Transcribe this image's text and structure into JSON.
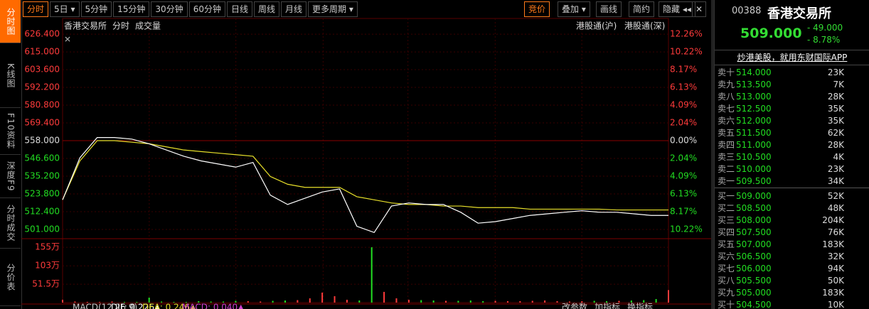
{
  "toolbar": {
    "left": [
      "分时",
      "5日 ▾",
      "5分钟",
      "15分钟",
      "30分钟",
      "60分钟",
      "日线",
      "周线",
      "月线",
      "更多周期 ▾"
    ],
    "right": [
      "竞价",
      "叠加 ▾",
      "画线",
      "简约",
      "隐藏 ◂◂"
    ]
  },
  "side_tabs": [
    "分时图",
    "K线图",
    "F10资料",
    "深度F9",
    "分时成交",
    "分价表"
  ],
  "chart": {
    "name": "香港交易所",
    "mode": "分时",
    "volume_label": "成交量",
    "links": [
      "港股通(沪)",
      "港股通(深)"
    ],
    "prev_close": 558.0,
    "ylim": [
      495.5,
      631.0
    ],
    "yticks": [
      {
        "value": 626.4,
        "label": "626.400"
      },
      {
        "value": 615.0,
        "label": "615.000"
      },
      {
        "value": 603.6,
        "label": "603.600"
      },
      {
        "value": 592.2,
        "label": "592.200"
      },
      {
        "value": 580.8,
        "label": "580.800"
      },
      {
        "value": 569.4,
        "label": "569.400"
      },
      {
        "value": 558.0,
        "label": "558.000"
      },
      {
        "value": 546.6,
        "label": "546.600"
      },
      {
        "value": 535.2,
        "label": "535.200"
      },
      {
        "value": 523.8,
        "label": "523.800"
      },
      {
        "value": 512.4,
        "label": "512.400"
      },
      {
        "value": 501.0,
        "label": "501.000"
      }
    ],
    "pct_labels": [
      "12.26%",
      "10.22%",
      "8.17%",
      "6.13%",
      "4.09%",
      "2.04%",
      "0.00%",
      "2.04%",
      "4.09%",
      "6.13%",
      "8.17%",
      "10.22%"
    ],
    "price": [
      520,
      547,
      560,
      560,
      559,
      556,
      552,
      548,
      545,
      543,
      541,
      544,
      523,
      517,
      521,
      525,
      527,
      503,
      499,
      516,
      518,
      517,
      517,
      512,
      505,
      506,
      508,
      510,
      511,
      512,
      513,
      512,
      512,
      511,
      510,
      510
    ],
    "average": [
      520,
      545,
      558,
      558,
      557,
      556,
      554,
      552,
      551,
      550,
      549,
      548,
      535,
      530,
      528,
      528,
      528,
      522,
      520,
      518,
      517,
      517,
      516,
      516,
      515,
      515,
      515,
      514,
      514,
      514,
      514,
      514,
      513.5,
      513.5,
      513.5,
      513.5
    ],
    "vlim": [
      0,
      179
    ],
    "vticks": [
      {
        "value": 155,
        "label": "155万"
      },
      {
        "value": 103,
        "label": "103万"
      },
      {
        "value": 51.5,
        "label": "51.5万"
      }
    ],
    "volume": [
      8,
      3,
      2,
      2,
      3,
      2,
      2,
      14,
      3,
      2,
      2,
      4,
      3,
      3,
      5,
      4,
      3,
      5,
      6,
      7,
      12,
      28,
      18,
      8,
      6,
      155,
      30,
      12,
      8,
      7,
      6,
      5,
      5,
      6,
      4,
      5,
      4,
      4,
      5,
      6,
      4,
      3,
      4,
      5,
      4,
      5,
      6,
      7,
      10,
      35
    ],
    "macd": [
      "MACD(12,26,9)",
      "DIF: 0.226▲",
      "DEA: 0.246▲",
      "MACD: 0.040▲"
    ],
    "macd_actions": [
      "改参数",
      "加指标",
      "换指标"
    ]
  },
  "quote": {
    "code": "00388",
    "name": "香港交易所",
    "price": "509.000",
    "change": "- 49.000",
    "pct": "- 8.78%",
    "ad": "炒港美股，就用东财国际APP",
    "sell": [
      [
        "卖十",
        "514.000",
        "23K"
      ],
      [
        "卖九",
        "513.500",
        "7K"
      ],
      [
        "卖八",
        "513.000",
        "28K"
      ],
      [
        "卖七",
        "512.500",
        "35K"
      ],
      [
        "卖六",
        "512.000",
        "35K"
      ],
      [
        "卖五",
        "511.500",
        "62K"
      ],
      [
        "卖四",
        "511.000",
        "28K"
      ],
      [
        "卖三",
        "510.500",
        "4K"
      ],
      [
        "卖二",
        "510.000",
        "23K"
      ],
      [
        "卖一",
        "509.500",
        "34K"
      ]
    ],
    "buy": [
      [
        "买一",
        "509.000",
        "52K"
      ],
      [
        "买二",
        "508.500",
        "48K"
      ],
      [
        "买三",
        "508.000",
        "204K"
      ],
      [
        "买四",
        "507.500",
        "76K"
      ],
      [
        "买五",
        "507.000",
        "183K"
      ],
      [
        "买六",
        "506.500",
        "32K"
      ],
      [
        "买七",
        "506.000",
        "94K"
      ],
      [
        "买八",
        "505.500",
        "50K"
      ],
      [
        "买九",
        "505.000",
        "183K"
      ],
      [
        "买十",
        "504.500",
        "10K"
      ]
    ]
  }
}
